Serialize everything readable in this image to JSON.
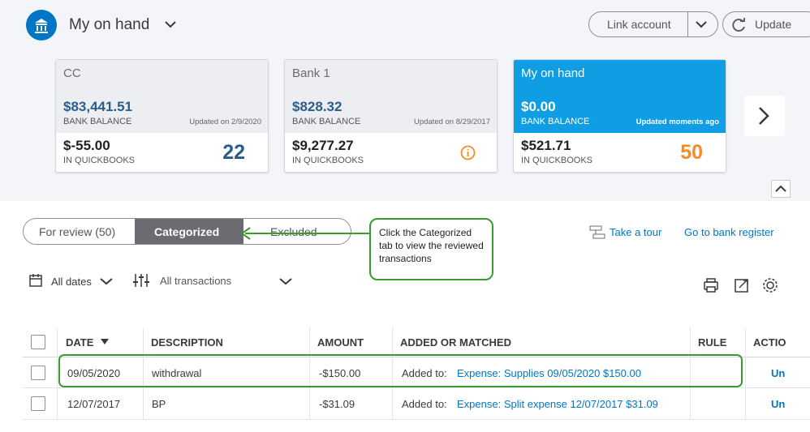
{
  "header": {
    "title": "My on hand",
    "link_account": "Link account",
    "update": "Update"
  },
  "accounts": [
    {
      "name": "CC",
      "bank_balance": "$83,441.51",
      "bank_balance_label": "BANK BALANCE",
      "updated": "Updated on 2/9/2020",
      "qb_balance": "$-55.00",
      "qb_label": "IN QUICKBOOKS",
      "count": "22"
    },
    {
      "name": "Bank 1",
      "bank_balance": "$828.32",
      "bank_balance_label": "BANK BALANCE",
      "updated": "Updated on 8/29/2017",
      "qb_balance": "$9,277.27",
      "qb_label": "IN QUICKBOOKS"
    },
    {
      "name": "My on hand",
      "bank_balance": "$0.00",
      "bank_balance_label": "BANK BALANCE",
      "updated": "Updated moments ago",
      "qb_balance": "$521.71",
      "qb_label": "IN QUICKBOOKS",
      "count": "50"
    }
  ],
  "tabs": [
    "For review (50)",
    "Categorized",
    "Excluded"
  ],
  "callout": "Click the Categorized tab to view the reviewed transactions",
  "links": [
    "Take a tour",
    "Go to bank register"
  ],
  "filters": [
    "All dates",
    "All transactions"
  ],
  "table": {
    "columns": [
      "DATE",
      "DESCRIPTION",
      "AMOUNT",
      "ADDED OR MATCHED",
      "RULE",
      "ACTIO"
    ],
    "rows": [
      {
        "date": "09/05/2020",
        "description": "withdrawal",
        "amount": "-$150.00",
        "added_label": "Added to:",
        "added_link": "Expense: Supplies 09/05/2020 $150.00",
        "action": "Un"
      },
      {
        "date": "12/07/2017",
        "description": "BP",
        "amount": "-$31.09",
        "added_label": "Added to:",
        "added_link": "Expense: Split expense 12/07/2017 $31.09",
        "action": "Un"
      }
    ]
  }
}
